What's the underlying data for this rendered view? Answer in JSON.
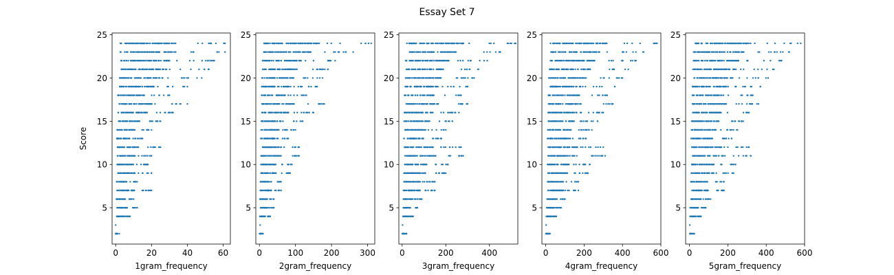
{
  "figure": {
    "title": "Essay Set 7"
  },
  "chart_data": [
    {
      "type": "scatter",
      "xlabel": "1gram_frequency",
      "ylabel": "Score",
      "xlim": [
        -2,
        64
      ],
      "ylim": [
        0.8,
        25.2
      ],
      "xticks": [
        0,
        20,
        40,
        60
      ],
      "yticks": [
        5,
        10,
        15,
        20,
        25
      ],
      "color": "#1f77b4",
      "max_x": [
        61,
        61,
        55,
        52,
        48,
        40,
        30,
        40,
        32,
        25,
        20,
        15,
        25,
        20,
        18,
        20,
        12,
        20,
        10,
        12,
        8,
        1
      ],
      "points": [
        [
          0,
          3
        ],
        [
          2,
          2
        ],
        [
          2,
          4
        ],
        [
          5,
          4
        ]
      ]
    },
    {
      "type": "scatter",
      "xlabel": "2gram_frequency",
      "ylabel": "",
      "xlim": [
        -10,
        320
      ],
      "ylim": [
        0.8,
        25.2
      ],
      "xticks": [
        0,
        100,
        200,
        300
      ],
      "yticks": [
        5,
        10,
        15,
        20,
        25
      ],
      "color": "#1f77b4",
      "max_x": [
        310,
        260,
        210,
        190,
        175,
        160,
        130,
        180,
        150,
        120,
        100,
        80,
        110,
        110,
        90,
        85,
        60,
        60,
        40,
        40,
        30,
        10
      ],
      "points": [
        [
          2,
          3
        ],
        [
          5,
          2
        ],
        [
          12,
          4
        ],
        [
          25,
          4
        ]
      ]
    },
    {
      "type": "scatter",
      "xlabel": "3gram_frequency",
      "ylabel": "",
      "xlim": [
        -15,
        530
      ],
      "ylim": [
        0.8,
        25.2
      ],
      "xticks": [
        0,
        200,
        400
      ],
      "yticks": [
        5,
        10,
        15,
        20,
        25
      ],
      "color": "#1f77b4",
      "max_x": [
        520,
        450,
        390,
        350,
        330,
        300,
        270,
        300,
        260,
        230,
        200,
        180,
        270,
        280,
        210,
        200,
        150,
        150,
        90,
        70,
        50,
        20
      ],
      "points": [
        [
          2,
          3
        ],
        [
          10,
          2
        ],
        [
          20,
          4
        ],
        [
          45,
          4
        ]
      ]
    },
    {
      "type": "scatter",
      "xlabel": "4gram_frequency",
      "ylabel": "",
      "xlim": [
        -20,
        600
      ],
      "ylim": [
        0.8,
        25.2
      ],
      "xticks": [
        0,
        200,
        400,
        600
      ],
      "yticks": [
        5,
        10,
        15,
        20,
        25
      ],
      "color": "#1f77b4",
      "max_x": [
        580,
        510,
        470,
        430,
        400,
        360,
        320,
        350,
        300,
        270,
        240,
        210,
        300,
        310,
        230,
        220,
        170,
        170,
        100,
        80,
        55,
        22
      ],
      "points": [
        [
          2,
          3
        ],
        [
          12,
          2
        ],
        [
          22,
          4
        ],
        [
          50,
          4
        ]
      ]
    },
    {
      "type": "scatter",
      "xlabel": "5gram_frequency",
      "ylabel": "",
      "xlim": [
        -20,
        600
      ],
      "ylim": [
        0.8,
        25.2
      ],
      "xticks": [
        0,
        200,
        400,
        600
      ],
      "yticks": [
        5,
        10,
        15,
        20,
        25
      ],
      "color": "#1f77b4",
      "max_x": [
        580,
        520,
        480,
        440,
        410,
        370,
        330,
        360,
        310,
        280,
        250,
        220,
        310,
        320,
        240,
        230,
        180,
        180,
        110,
        85,
        60,
        25
      ],
      "points": [
        [
          2,
          3
        ],
        [
          12,
          2
        ],
        [
          22,
          4
        ],
        [
          50,
          4
        ]
      ]
    }
  ]
}
